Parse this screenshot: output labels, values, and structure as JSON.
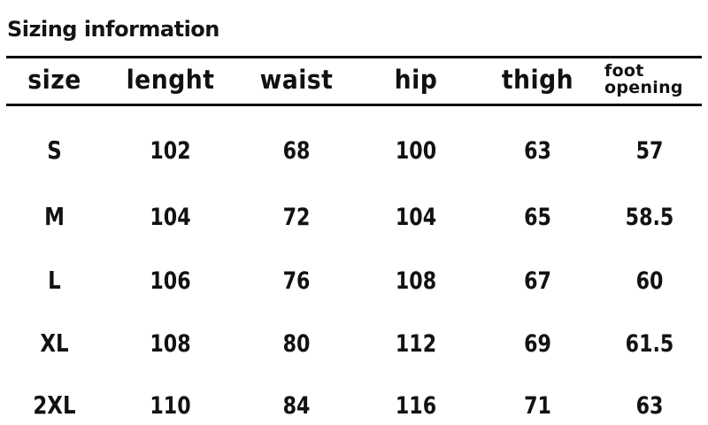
{
  "page": {
    "title": "Sizing information"
  },
  "table": {
    "columns": [
      {
        "label": "size"
      },
      {
        "label": "lenght"
      },
      {
        "label": "waist"
      },
      {
        "label": "hip"
      },
      {
        "label": "thigh"
      },
      {
        "label": "foot opening",
        "line1": "foot",
        "line2": "opening"
      }
    ],
    "rows": [
      {
        "label": "S",
        "values": [
          "102",
          "68",
          "100",
          "63",
          "57"
        ]
      },
      {
        "label": "M",
        "values": [
          "104",
          "72",
          "104",
          "65",
          "58.5"
        ]
      },
      {
        "label": "L",
        "values": [
          "106",
          "76",
          "108",
          "67",
          "60"
        ]
      },
      {
        "label": "XL",
        "values": [
          "108",
          "80",
          "112",
          "69",
          "61.5"
        ]
      },
      {
        "label": "2XL",
        "values": [
          "110",
          "84",
          "116",
          "71",
          "63"
        ]
      }
    ],
    "text_color": "#121212",
    "rule_color": "#0d0d0d",
    "background_color": "#ffffff"
  },
  "chart_data": {
    "type": "table",
    "title": "Sizing information",
    "columns": [
      "size",
      "lenght",
      "waist",
      "hip",
      "thigh",
      "foot opening"
    ],
    "rows": [
      [
        "S",
        102,
        68,
        100,
        63,
        57
      ],
      [
        "M",
        104,
        72,
        104,
        65,
        58.5
      ],
      [
        "L",
        106,
        76,
        108,
        67,
        60
      ],
      [
        "XL",
        108,
        80,
        112,
        69,
        61.5
      ],
      [
        "2XL",
        110,
        84,
        116,
        71,
        63
      ]
    ]
  }
}
